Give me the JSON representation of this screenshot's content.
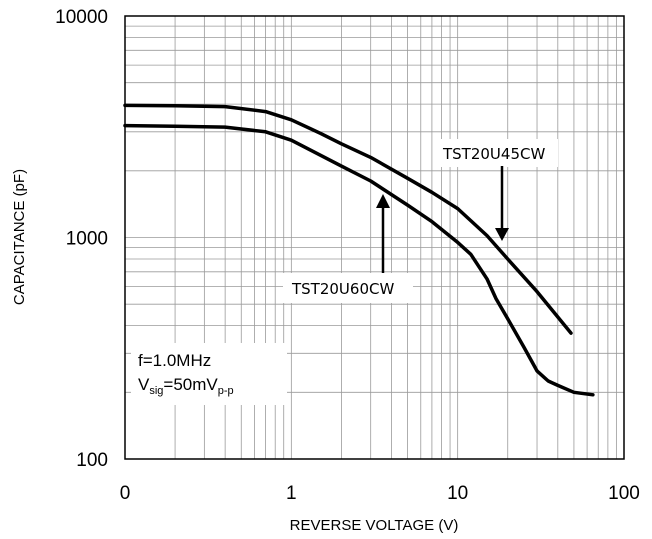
{
  "chart_data": {
    "type": "line",
    "title": "",
    "xlabel": "REVERSE VOLTAGE (V)",
    "ylabel": "CAPACITANCE (pF)",
    "x_scale": "log",
    "y_scale": "log",
    "xlim": [
      0.1,
      100
    ],
    "ylim": [
      100,
      10000
    ],
    "x_ticks": [
      {
        "value": 0.1,
        "label": "0"
      },
      {
        "value": 1,
        "label": "1"
      },
      {
        "value": 10,
        "label": "10"
      },
      {
        "value": 100,
        "label": "100"
      }
    ],
    "y_ticks": [
      {
        "value": 100,
        "label": "100"
      },
      {
        "value": 1000,
        "label": "1000"
      },
      {
        "value": 10000,
        "label": "10000"
      }
    ],
    "grid": true,
    "series": [
      {
        "name": "TST20U45CW",
        "x": [
          0.1,
          0.2,
          0.4,
          0.7,
          1,
          1.5,
          2,
          3,
          5,
          7,
          10,
          15,
          20,
          30,
          48
        ],
        "y": [
          3950,
          3930,
          3900,
          3700,
          3400,
          2950,
          2650,
          2300,
          1850,
          1600,
          1350,
          1020,
          800,
          570,
          370
        ]
      },
      {
        "name": "TST20U60CW",
        "x": [
          0.1,
          0.2,
          0.4,
          0.7,
          1,
          1.5,
          2,
          3,
          5,
          7,
          10,
          12,
          15,
          17,
          20,
          25,
          30,
          35,
          40,
          50,
          65
        ],
        "y": [
          3200,
          3180,
          3150,
          3000,
          2750,
          2350,
          2100,
          1800,
          1400,
          1180,
          950,
          840,
          650,
          530,
          430,
          320,
          250,
          225,
          215,
          200,
          195
        ]
      }
    ],
    "annotations": {
      "label_45": "TST20U45CW",
      "label_60": "TST20U60CW",
      "cond_freq": "f=1.0MHz",
      "cond_v": "V",
      "cond_sig_sub": "sig",
      "cond_val": "=50mV",
      "cond_pp_sub": "p-p"
    },
    "colors": {
      "line": "#000000",
      "grid": "#9a9a9a",
      "frame": "#000000"
    }
  }
}
